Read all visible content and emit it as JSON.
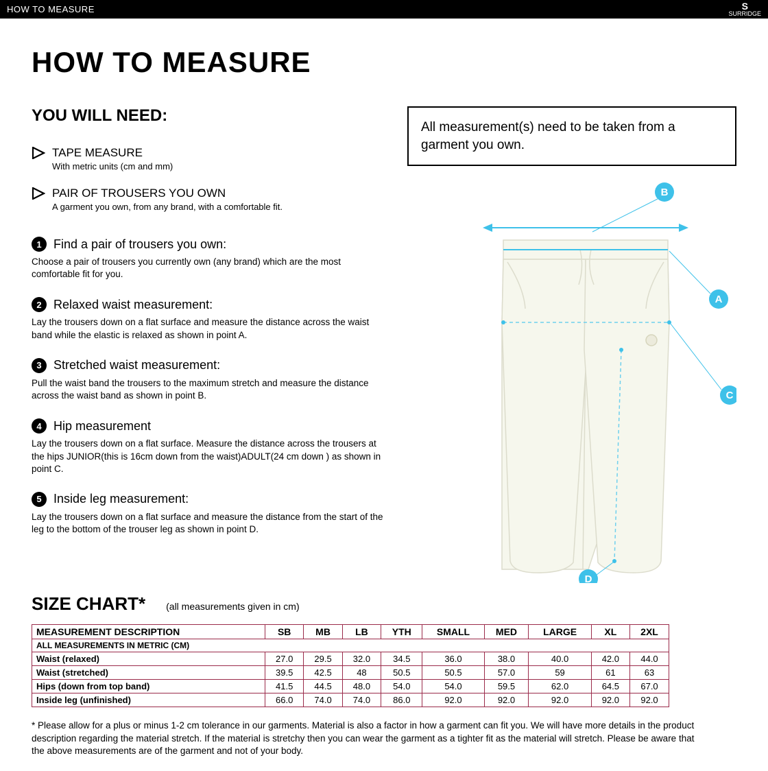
{
  "topbar": {
    "title": "HOW TO MEASURE",
    "logo_top": "S",
    "logo_bottom": "SURRIDGE"
  },
  "main_title": "HOW TO MEASURE",
  "you_will_need": {
    "heading": "YOU WILL NEED:",
    "items": [
      {
        "title": "TAPE MEASURE",
        "sub": "With metric units (cm and mm)"
      },
      {
        "title": "PAIR OF TROUSERS YOU OWN",
        "sub": "A garment you own, from any brand, with a comfortable fit."
      }
    ]
  },
  "steps": [
    {
      "num": "1",
      "title": "Find a pair of trousers you own:",
      "body": "Choose a pair of trousers you currently own (any brand) which are the most comfortable fit for you."
    },
    {
      "num": "2",
      "title": "Relaxed waist measurement:",
      "body": "Lay the trousers down on a flat surface and measure the distance across the waist band while the elastic is relaxed as shown in point A."
    },
    {
      "num": "3",
      "title": "Stretched waist measurement:",
      "body": "Pull the waist band the trousers to the maximum stretch and measure the distance across the waist band as shown in point B."
    },
    {
      "num": "4",
      "title": "Hip measurement",
      "body": "Lay the trousers down on a flat surface. Measure the distance across the trousers at the hips JUNIOR(this is 16cm down from the waist)ADULT(24 cm down ) as shown in point C."
    },
    {
      "num": "5",
      "title": "Inside leg measurement:",
      "body": "Lay the trousers down on a flat surface and measure the distance from the start of the leg to the bottom of the trouser leg as shown in point D."
    }
  ],
  "note_box": "All measurement(s) need to be taken from a garment you own.",
  "diagram": {
    "label_color": "#3ec1e9",
    "line_color": "#3ec1e9",
    "dash_color": "#6fd0ed",
    "trouser_fill": "#f6f7ed",
    "trouser_stroke": "#dcdccc",
    "labels": {
      "a": "A",
      "b": "B",
      "c": "C",
      "d": "D"
    }
  },
  "size_chart": {
    "title": "SIZE CHART*",
    "note": "(all measurements given in cm)",
    "border_color": "#9a2a4a",
    "desc_header": "MEASUREMENT DESCRIPTION",
    "subhead": "ALL MEASUREMENTS IN METRIC (CM)",
    "columns": [
      "SB",
      "MB",
      "LB",
      "YTH",
      "SMALL",
      "MED",
      "LARGE",
      "XL",
      "2XL"
    ],
    "rows": [
      {
        "label": "Waist (relaxed)",
        "vals": [
          "27.0",
          "29.5",
          "32.0",
          "34.5",
          "36.0",
          "38.0",
          "40.0",
          "42.0",
          "44.0"
        ]
      },
      {
        "label": "Waist (stretched)",
        "vals": [
          "39.5",
          "42.5",
          "48",
          "50.5",
          "50.5",
          "57.0",
          "59",
          "61",
          "63"
        ]
      },
      {
        "label": "Hips (down from top band)",
        "vals": [
          "41.5",
          "44.5",
          "48.0",
          "54.0",
          "54.0",
          "59.5",
          "62.0",
          "64.5",
          "67.0"
        ]
      },
      {
        "label": "Inside leg (unfinished)",
        "vals": [
          "66.0",
          "74.0",
          "74.0",
          "86.0",
          "92.0",
          "92.0",
          "92.0",
          "92.0",
          "92.0"
        ]
      }
    ]
  },
  "footnote": "* Please allow for a plus or minus 1-2 cm tolerance in our garments. Material is also a factor in how a garment can fit you. We will have more details in the product description regarding the material stretch.  If the material is stretchy then you can wear the garment as a tighter fit as the material will stretch.  Please be aware that the above measurements are of the garment and not of your body."
}
